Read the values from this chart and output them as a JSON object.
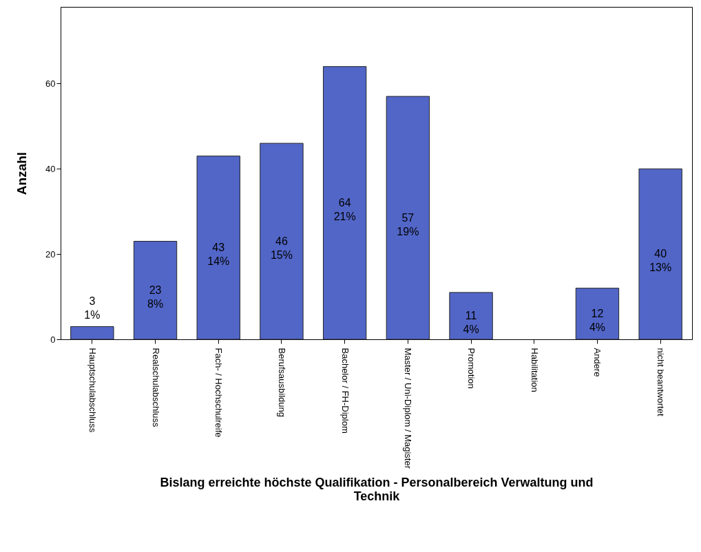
{
  "chart_data": {
    "type": "bar",
    "xlabel": "Bislang erreichte höchste Qualifikation - Personalbereich Verwaltung und Technik",
    "ylabel": "Anzahl",
    "categories": [
      "Hauptschulabschluss",
      "Realschulabschluss",
      "Fach- / Hochschulreife",
      "Berufsausbildung",
      "Bachelor / FH-Diplom",
      "Master / Uni-Diplom / Magister",
      "Promotion",
      "Habilitation",
      "Andere",
      "nicht beantwortet"
    ],
    "values": [
      3,
      23,
      43,
      46,
      64,
      57,
      11,
      null,
      12,
      40
    ],
    "value_labels": [
      "3\n1%",
      "23\n8%",
      "43\n14%",
      "46\n15%",
      "64\n21%",
      "57\n19%",
      "11\n4%",
      null,
      "12\n4%",
      "40\n13%"
    ],
    "color": "#5266c8",
    "ylim": [
      0,
      78
    ],
    "yticks": [
      0,
      20,
      40,
      60
    ],
    "grid": false
  }
}
